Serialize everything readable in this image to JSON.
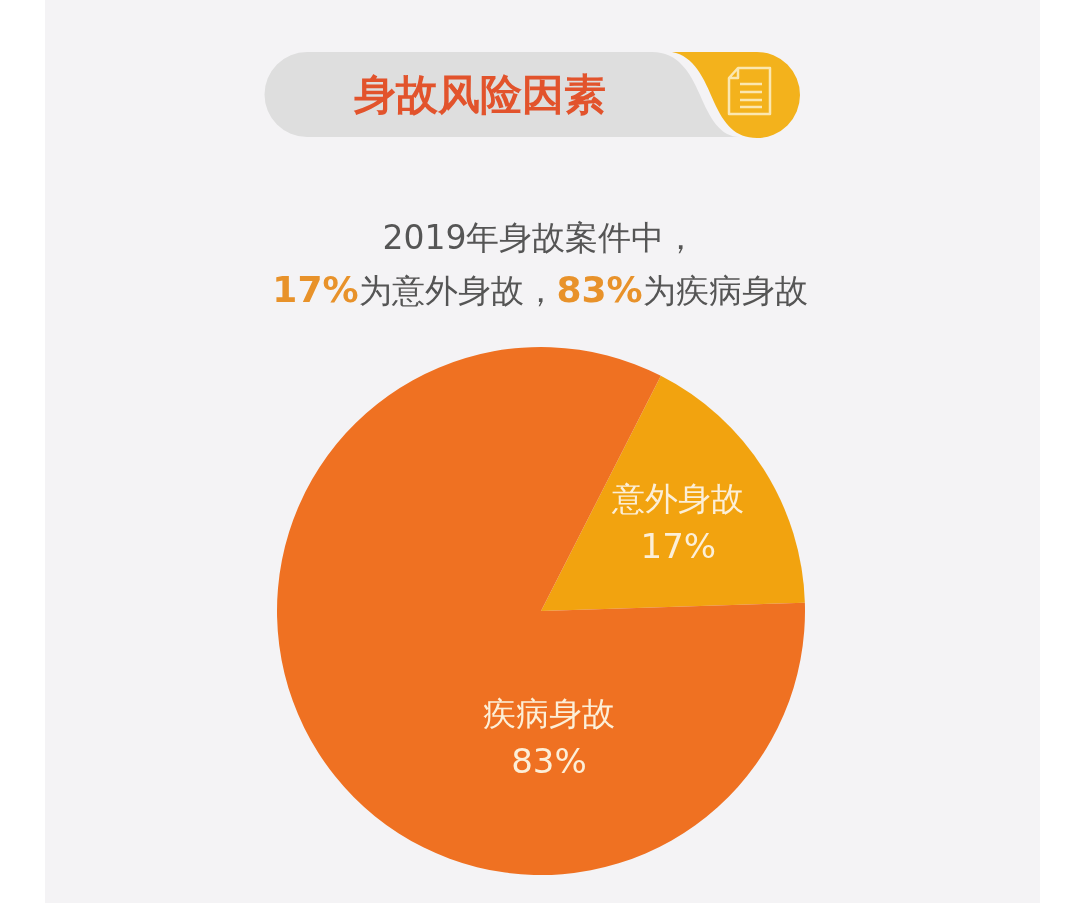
{
  "chart_data": {
    "type": "pie",
    "title": "身故风险因素",
    "subtitle": "2019年身故案件中，\n17%为意外身故，83%为疾病身故",
    "categories": [
      "意外身故",
      "疾病身故"
    ],
    "values": [
      17,
      83
    ],
    "value_labels": [
      "17%",
      "83%"
    ],
    "colors": [
      "#f2a30f",
      "#ef7122"
    ]
  }
}
